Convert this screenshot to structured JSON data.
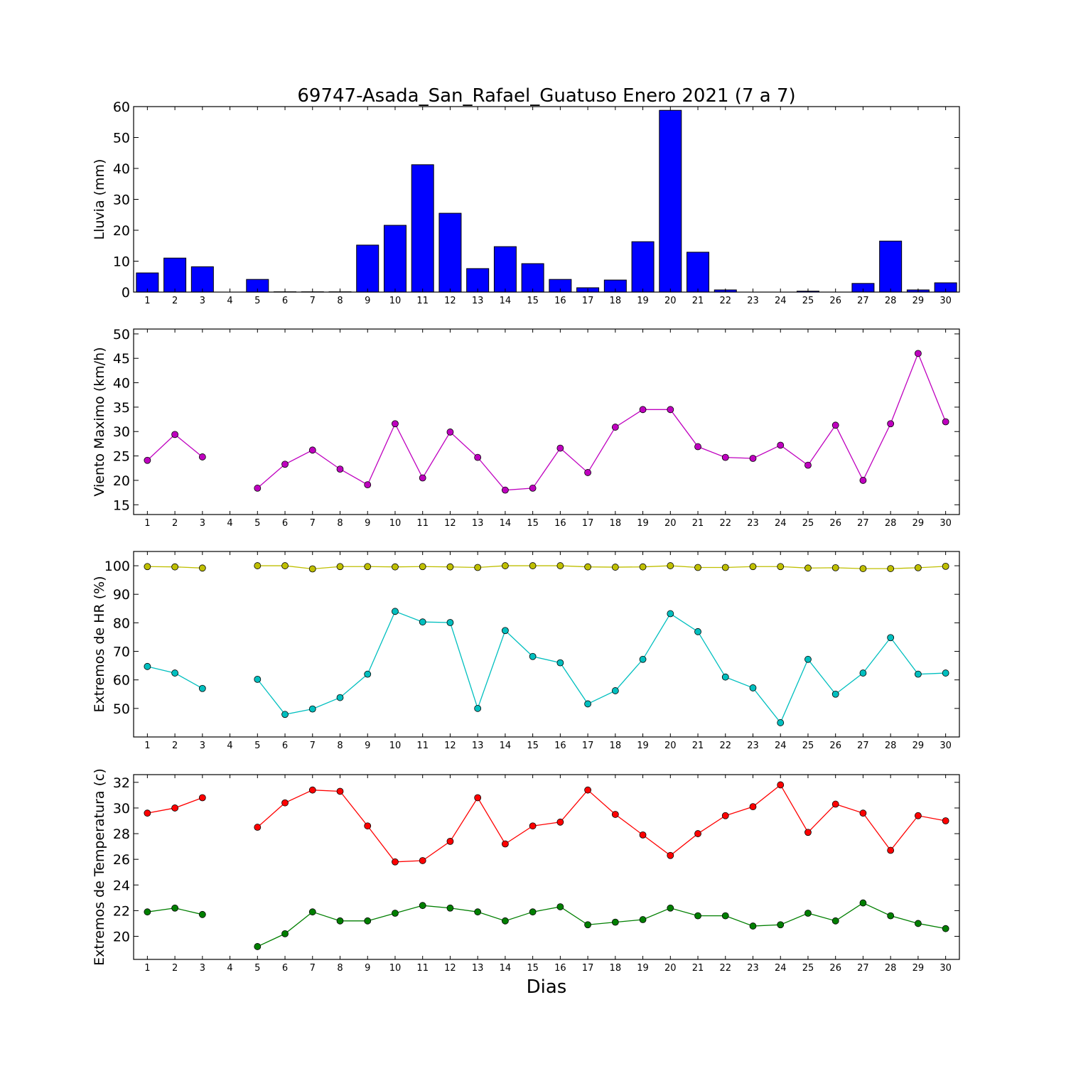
{
  "figure": {
    "title": "69747-Asada_San_Rafael_Guatuso Enero 2021  (7 a 7)",
    "xlabel": "Dias"
  },
  "chart_data": [
    {
      "type": "bar",
      "ylabel": "Lluvia (mm)",
      "ylim": [
        0,
        60
      ],
      "yticks": [
        0,
        10,
        20,
        30,
        40,
        50,
        60
      ],
      "x": [
        1,
        2,
        3,
        4,
        5,
        6,
        7,
        8,
        9,
        10,
        11,
        12,
        13,
        14,
        15,
        16,
        17,
        18,
        19,
        20,
        21,
        22,
        23,
        24,
        25,
        26,
        27,
        28,
        29,
        30
      ],
      "series": [
        {
          "color": "#0000ff",
          "values": [
            6.2,
            11.0,
            8.2,
            0,
            4.1,
            0.1,
            0.1,
            0.1,
            15.2,
            21.6,
            41.2,
            25.5,
            7.6,
            14.7,
            9.2,
            4.1,
            1.4,
            3.9,
            16.3,
            58.8,
            12.9,
            0.7,
            0,
            0,
            0.3,
            0,
            2.8,
            16.5,
            0.7,
            3.0
          ]
        }
      ],
      "xlim": [
        0.5,
        30.5
      ],
      "grid": false
    },
    {
      "type": "line",
      "ylabel": "Viento Maximo (km/h)",
      "ylim": [
        13,
        51
      ],
      "yticks": [
        15,
        20,
        25,
        30,
        35,
        40,
        45,
        50
      ],
      "x": [
        1,
        2,
        3,
        4,
        5,
        6,
        7,
        8,
        9,
        10,
        11,
        12,
        13,
        14,
        15,
        16,
        17,
        18,
        19,
        20,
        21,
        22,
        23,
        24,
        25,
        26,
        27,
        28,
        29,
        30
      ],
      "series": [
        {
          "color": "#bf00bf",
          "values": [
            24.1,
            29.4,
            24.8,
            null,
            18.4,
            23.3,
            26.2,
            22.3,
            19.1,
            31.6,
            20.5,
            29.9,
            24.7,
            18.0,
            18.4,
            26.6,
            21.6,
            30.9,
            34.5,
            34.5,
            26.9,
            24.7,
            24.5,
            27.2,
            23.1,
            31.3,
            20.0,
            31.6,
            46.0,
            32.0
          ]
        }
      ],
      "xlim": [
        0.5,
        30.5
      ],
      "grid": false
    },
    {
      "type": "line",
      "ylabel": "Extremos de HR (%)",
      "ylim": [
        40,
        105
      ],
      "yticks": [
        50,
        60,
        70,
        80,
        90,
        100
      ],
      "x": [
        1,
        2,
        3,
        4,
        5,
        6,
        7,
        8,
        9,
        10,
        11,
        12,
        13,
        14,
        15,
        16,
        17,
        18,
        19,
        20,
        21,
        22,
        23,
        24,
        25,
        26,
        27,
        28,
        29,
        30
      ],
      "series": [
        {
          "color": "#bfbf00",
          "values": [
            99.7,
            99.6,
            99.2,
            null,
            100.0,
            100.0,
            98.9,
            99.7,
            99.7,
            99.6,
            99.7,
            99.6,
            99.4,
            100.0,
            100.0,
            100.0,
            99.6,
            99.5,
            99.6,
            100.0,
            99.4,
            99.4,
            99.7,
            99.7,
            99.2,
            99.3,
            99.0,
            99.0,
            99.3,
            99.8
          ]
        },
        {
          "color": "#00bfbf",
          "values": [
            64.7,
            62.4,
            57.0,
            null,
            60.2,
            47.9,
            49.8,
            53.8,
            62.0,
            84.0,
            80.3,
            80.1,
            50.0,
            77.3,
            68.2,
            66.0,
            51.6,
            56.2,
            67.2,
            83.2,
            76.9,
            61.0,
            57.2,
            45.0,
            67.2,
            55.0,
            62.4,
            74.8,
            62.0,
            62.4
          ]
        }
      ],
      "xlim": [
        0.5,
        30.5
      ],
      "grid": false
    },
    {
      "type": "line",
      "ylabel": "Extremos de Temperatura (c)",
      "ylim": [
        18.2,
        32.6
      ],
      "yticks": [
        20,
        22,
        24,
        26,
        28,
        30,
        32
      ],
      "x": [
        1,
        2,
        3,
        4,
        5,
        6,
        7,
        8,
        9,
        10,
        11,
        12,
        13,
        14,
        15,
        16,
        17,
        18,
        19,
        20,
        21,
        22,
        23,
        24,
        25,
        26,
        27,
        28,
        29,
        30
      ],
      "series": [
        {
          "color": "#ff0000",
          "values": [
            29.6,
            30.0,
            30.8,
            null,
            28.5,
            30.4,
            31.4,
            31.3,
            28.6,
            25.8,
            25.9,
            27.4,
            30.8,
            27.2,
            28.6,
            28.9,
            31.4,
            29.5,
            27.9,
            26.3,
            28.0,
            29.4,
            30.1,
            31.8,
            28.1,
            30.3,
            29.6,
            26.7,
            29.4,
            29.0
          ]
        },
        {
          "color": "#007f00",
          "values": [
            21.9,
            22.2,
            21.7,
            null,
            19.2,
            20.2,
            21.9,
            21.2,
            21.2,
            21.8,
            22.4,
            22.2,
            21.9,
            21.2,
            21.9,
            22.3,
            20.9,
            21.1,
            21.3,
            22.2,
            21.6,
            21.6,
            20.8,
            20.9,
            21.8,
            21.2,
            22.6,
            21.6,
            21.0,
            20.6
          ]
        }
      ],
      "xlim": [
        0.5,
        30.5
      ],
      "grid": false
    }
  ]
}
